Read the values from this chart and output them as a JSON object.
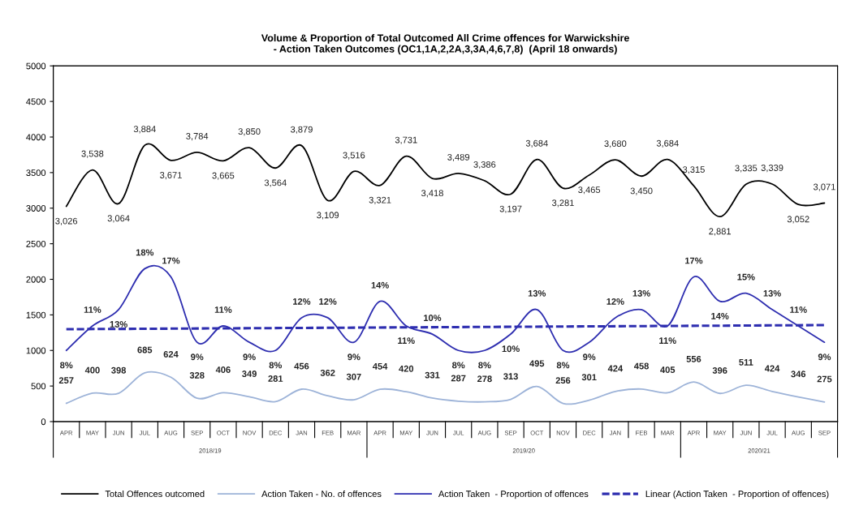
{
  "chart_data": {
    "type": "line",
    "title": "Volume & Proportion of Total Outcomed All Crime offences for Warwickshire\n- Action Taken Outcomes (OC1,1A,2,2A,3,3A,4,6,7,8)  (April 18 onwards)",
    "categories": [
      "APR",
      "MAY",
      "JUN",
      "JUL",
      "AUG",
      "SEP",
      "OCT",
      "NOV",
      "DEC",
      "JAN",
      "FEB",
      "MAR",
      "APR",
      "MAY",
      "JUN",
      "JUL",
      "AUG",
      "SEP",
      "OCT",
      "NOV",
      "DEC",
      "JAN",
      "FEB",
      "MAR",
      "APR",
      "MAY",
      "JUN",
      "JUL",
      "AUG",
      "SEP"
    ],
    "annotations": [
      "2018/19",
      "2019/20",
      "2020/21"
    ],
    "ylim": [
      0,
      5000
    ],
    "yticks": [
      0,
      500,
      1000,
      1500,
      2000,
      2500,
      3000,
      3500,
      4000,
      4500,
      5000
    ],
    "grid": false,
    "legend": "bottom",
    "marker": "none",
    "series": [
      {
        "name": "Total Offences outcomed",
        "color": "#000000",
        "line_style": "solid",
        "values": [
          3026,
          3538,
          3064,
          3884,
          3671,
          3784,
          3665,
          3850,
          3564,
          3879,
          3109,
          3516,
          3321,
          3731,
          3418,
          3489,
          3386,
          3197,
          3684,
          3281,
          3465,
          3680,
          3450,
          3684,
          3315,
          2881,
          3335,
          3339,
          3052,
          3071
        ],
        "value_labels": [
          "3,026",
          "3,538",
          "3,064",
          "3,884",
          "3,671",
          "3,784",
          "3,665",
          "3,850",
          "3,564",
          "3,879",
          "3,109",
          "3,516",
          "3,321",
          "3,731",
          "3,418",
          "3,489",
          "3,386",
          "3,197",
          "3,684",
          "3,281",
          "3,465",
          "3,680",
          "3,450",
          "3,684",
          "3,315",
          "2,881",
          "3,335",
          "3,339",
          "3,052",
          "3,071"
        ]
      },
      {
        "name": "Action Taken - No. of offences",
        "color": "#9db3d8",
        "line_style": "solid",
        "values": [
          257,
          400,
          398,
          685,
          624,
          328,
          406,
          349,
          281,
          456,
          362,
          307,
          454,
          420,
          331,
          287,
          278,
          313,
          495,
          256,
          301,
          424,
          458,
          405,
          556,
          396,
          511,
          424,
          346,
          275
        ],
        "value_labels": [
          "257",
          "400",
          "398",
          "685",
          "624",
          "328",
          "406",
          "349",
          "281",
          "456",
          "362",
          "307",
          "454",
          "420",
          "331",
          "287",
          "278",
          "313",
          "495",
          "256",
          "301",
          "424",
          "458",
          "405",
          "556",
          "396",
          "511",
          "424",
          "346",
          "275"
        ]
      },
      {
        "name": "Action Taken  - Proportion of offences",
        "color": "#2e2eb0",
        "line_style": "solid",
        "axis": "y2",
        "values": [
          8,
          11,
          13,
          18,
          17,
          9,
          11,
          9,
          8,
          12,
          12,
          9,
          14,
          11,
          10,
          8,
          8,
          10,
          13,
          8,
          9,
          12,
          13,
          11,
          17,
          14,
          15,
          13,
          11,
          9
        ],
        "value_labels": [
          "8%",
          "11%",
          "13%",
          "18%",
          "17%",
          "9%",
          "11%",
          "9%",
          "8%",
          "12%",
          "12%",
          "9%",
          "14%",
          "11%",
          "10%",
          "8%",
          "8%",
          "10%",
          "13%",
          "8%",
          "9%",
          "12%",
          "13%",
          "11%",
          "17%",
          "14%",
          "15%",
          "13%",
          "11%",
          "9%"
        ]
      },
      {
        "name": "Linear (Action Taken  - Proportion of offences)",
        "color": "#2e2eb0",
        "line_style": "dashed",
        "axis": "y2",
        "values": [
          10.6,
          null,
          null,
          null,
          null,
          null,
          null,
          null,
          null,
          null,
          null,
          null,
          null,
          null,
          null,
          null,
          null,
          null,
          null,
          null,
          null,
          null,
          null,
          null,
          null,
          null,
          null,
          null,
          null,
          11.1
        ]
      }
    ]
  }
}
